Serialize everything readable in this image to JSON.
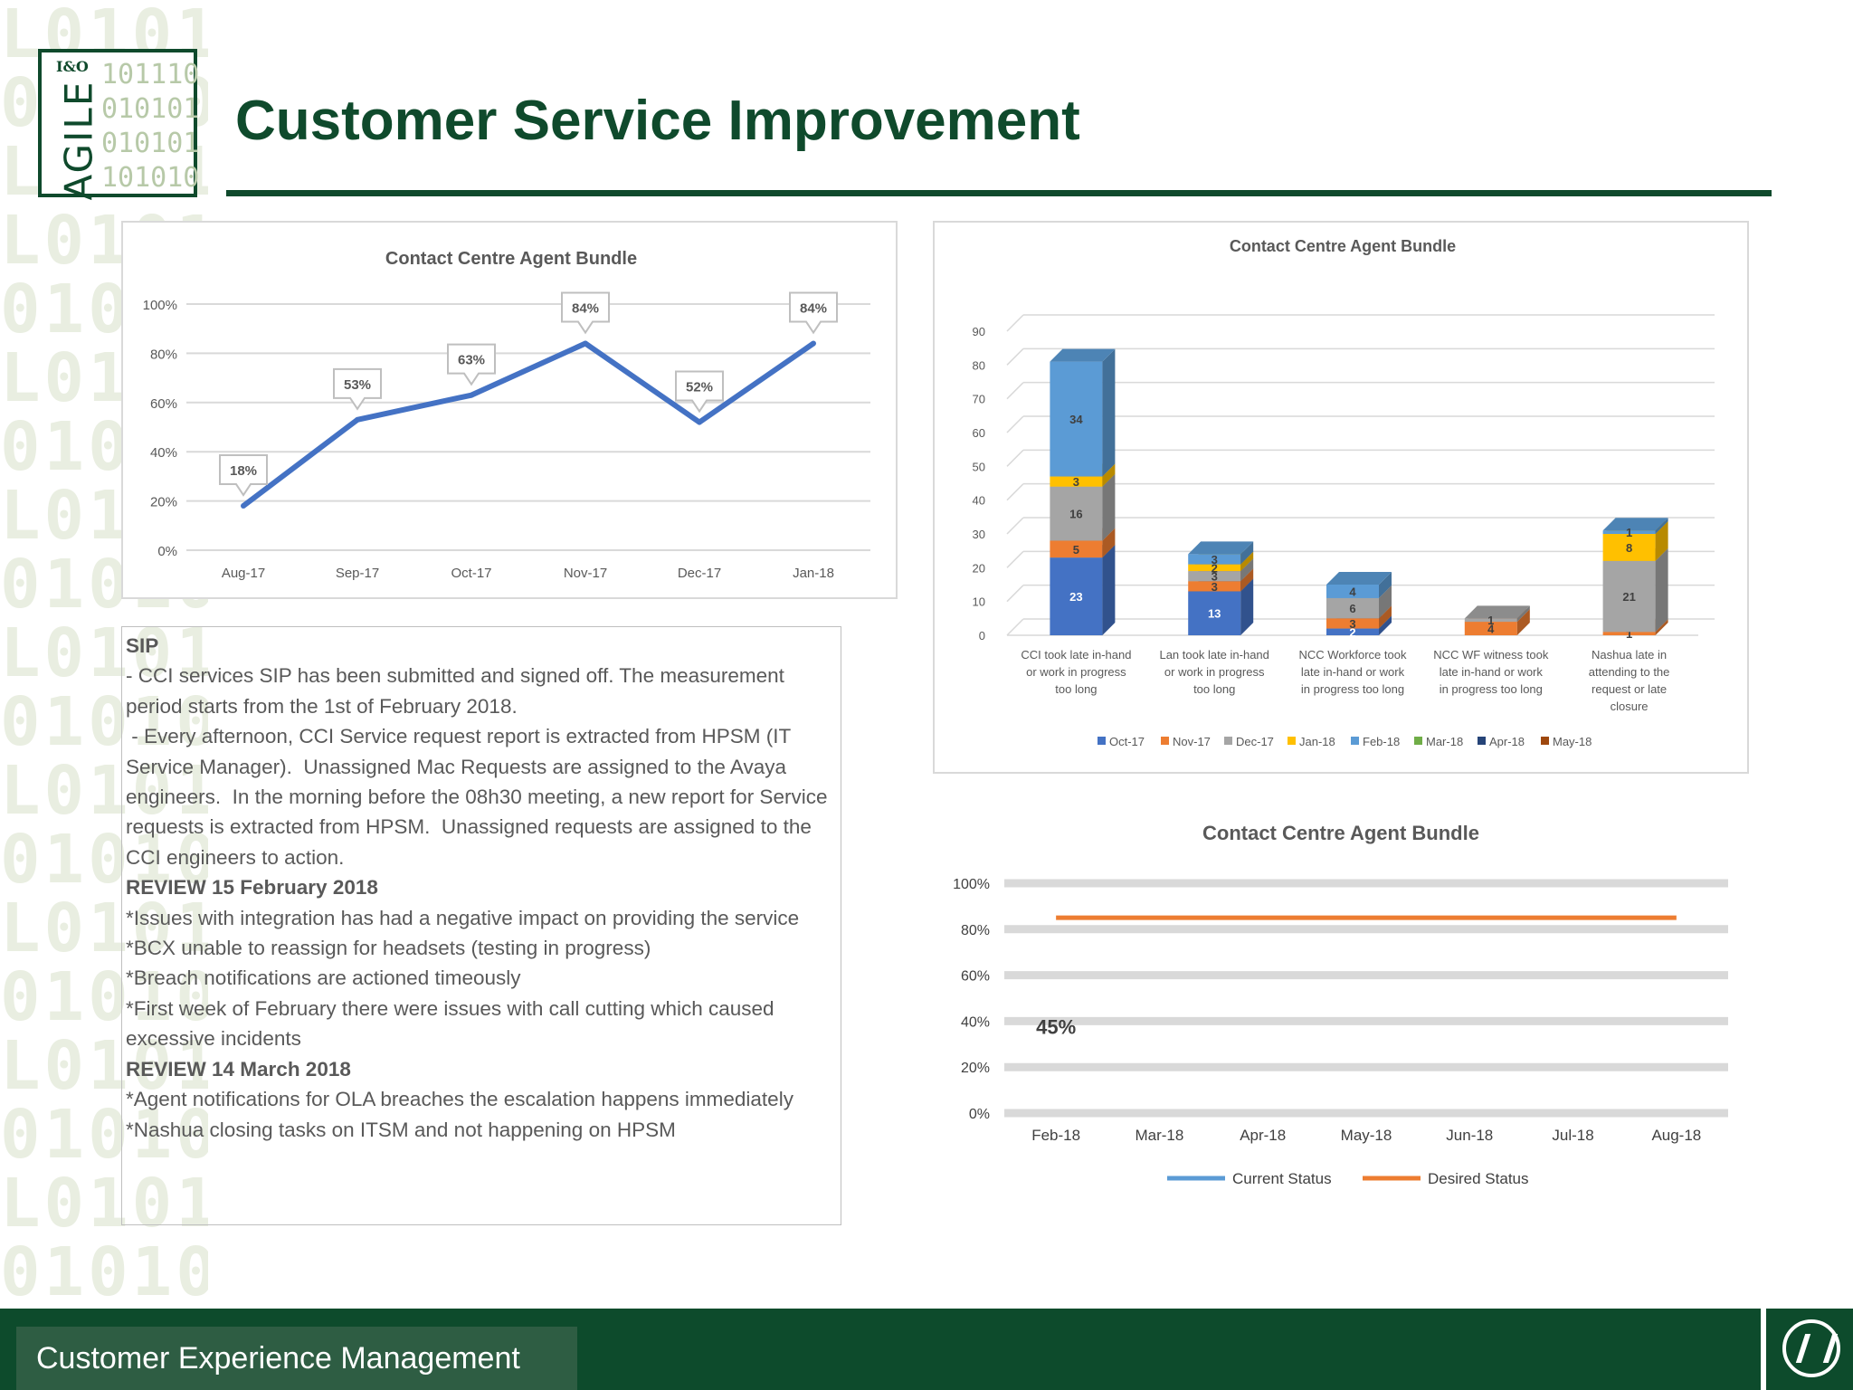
{
  "background": {
    "binary_rows": [
      "L0101",
      "01010",
      "L0101",
      "L0101",
      "01010",
      "L0101",
      "01010",
      "L0101",
      "01010",
      "L0101",
      "01010",
      "L0101",
      "01010",
      "L0101",
      "01010",
      "L0101",
      "01010",
      "L0101",
      "01010"
    ]
  },
  "logo": {
    "word": "AGILE",
    "superscript": "I&O",
    "bits": [
      "101110",
      "010101",
      "010101",
      "101010"
    ]
  },
  "header": {
    "title": "Customer Service Improvement"
  },
  "colors": {
    "brand_green": "#0f4a2c",
    "line_blue": "#4472c4",
    "current_status": "#5b9bd5",
    "desired_status": "#ed7d31"
  },
  "chart_data": [
    {
      "type": "line",
      "title": "Contact Centre Agent Bundle",
      "categories": [
        "Aug-17",
        "Sep-17",
        "Oct-17",
        "Nov-17",
        "Dec-17",
        "Jan-18"
      ],
      "series": [
        {
          "values": [
            18,
            53,
            63,
            84,
            52,
            84
          ]
        }
      ],
      "data_labels": [
        "18%",
        "53%",
        "63%",
        "84%",
        "52%",
        "84%"
      ],
      "y_ticks": [
        "0%",
        "20%",
        "40%",
        "60%",
        "80%",
        "100%"
      ],
      "ylim": [
        0,
        100
      ],
      "grid": true
    },
    {
      "type": "bar",
      "stacked": true,
      "three_d": true,
      "title": "Contact Centre Agent Bundle",
      "categories": [
        "CCI took late in-hand or work in progress too long",
        "Lan took late in-hand or work in progress too long",
        "NCC Workforce took late in-hand or work in progress too long",
        "NCC WF witness took late in-hand or work in progress too long",
        "Nashua late in attending to the request or late closure"
      ],
      "category_lines": [
        [
          "CCI took late in-hand",
          "or work in progress",
          "too long"
        ],
        [
          "Lan took late in-hand",
          "or work in progress",
          "too long"
        ],
        [
          "NCC Workforce took",
          "late in-hand or work",
          "in progress too long"
        ],
        [
          "NCC WF witness took",
          "late in-hand or work",
          "in progress too long"
        ],
        [
          "Nashua late in",
          "attending to the",
          "request or late",
          "closure"
        ]
      ],
      "series": [
        {
          "name": "Oct-17",
          "color": "#4472c4",
          "values": [
            23,
            13,
            2,
            0,
            0
          ]
        },
        {
          "name": "Nov-17",
          "color": "#ed7d31",
          "values": [
            5,
            3,
            3,
            4,
            1
          ]
        },
        {
          "name": "Dec-17",
          "color": "#a5a5a5",
          "values": [
            16,
            3,
            6,
            1,
            21
          ]
        },
        {
          "name": "Jan-18",
          "color": "#ffc000",
          "values": [
            3,
            2,
            0,
            0,
            8
          ]
        },
        {
          "name": "Feb-18",
          "color": "#5b9bd5",
          "values": [
            34,
            3,
            4,
            0,
            1
          ]
        },
        {
          "name": "Mar-18",
          "color": "#70ad47",
          "values": [
            0,
            0,
            0,
            0,
            0
          ]
        },
        {
          "name": "Apr-18",
          "color": "#264478",
          "values": [
            0,
            0,
            0,
            0,
            0
          ]
        },
        {
          "name": "May-18",
          "color": "#9e480e",
          "values": [
            0,
            0,
            0,
            0,
            0
          ]
        }
      ],
      "y_ticks": [
        "0",
        "10",
        "20",
        "30",
        "40",
        "50",
        "60",
        "70",
        "80",
        "90"
      ],
      "ylim": [
        0,
        90
      ],
      "legend": "bottom"
    },
    {
      "type": "line",
      "title": "Contact Centre Agent Bundle",
      "categories": [
        "Feb-18",
        "Mar-18",
        "Apr-18",
        "May-18",
        "Jun-18",
        "Jul-18",
        "Aug-18"
      ],
      "series": [
        {
          "name": "Current Status",
          "color": "#5b9bd5",
          "values": [
            45,
            null,
            null,
            null,
            null,
            null,
            null
          ]
        },
        {
          "name": "Desired Status",
          "color": "#ed7d31",
          "values": [
            85,
            85,
            85,
            85,
            85,
            85,
            85
          ]
        }
      ],
      "data_labels": [
        "45%"
      ],
      "y_ticks": [
        "0%",
        "20%",
        "40%",
        "60%",
        "80%",
        "100%"
      ],
      "ylim": [
        0,
        100
      ],
      "legend": "bottom"
    }
  ],
  "notes": {
    "sip_heading": "SIP",
    "sip_line1": "- CCI services SIP has been submitted and signed off. The measurement period starts from the 1st of February 2018.",
    "sip_line2": " - Every afternoon, CCI Service request report is extracted from HPSM (IT Service Manager).  Unassigned Mac Requests are assigned to the Avaya engineers.  In the morning before the 08h30 meeting, a new report for Service requests is extracted from HPSM.  Unassigned requests are assigned to the CCI engineers to action.",
    "review1_heading": "REVIEW 15 February 2018",
    "review1_items": [
      "*Issues with integration has had a negative impact on providing the service",
      "*BCX unable to reassign for headsets (testing in progress)",
      "*Breach notifications are actioned timeously",
      "*First week of February there were issues with call cutting which caused excessive incidents"
    ],
    "review2_heading": "REVIEW 14 March 2018",
    "review2_items": [
      "*Agent notifications for OLA breaches the escalation happens immediately",
      "*Nashua closing tasks on ITSM and not happening on HPSM"
    ]
  },
  "footer": {
    "label": "Customer Experience Management",
    "emblem": "nedbank-emblem"
  }
}
